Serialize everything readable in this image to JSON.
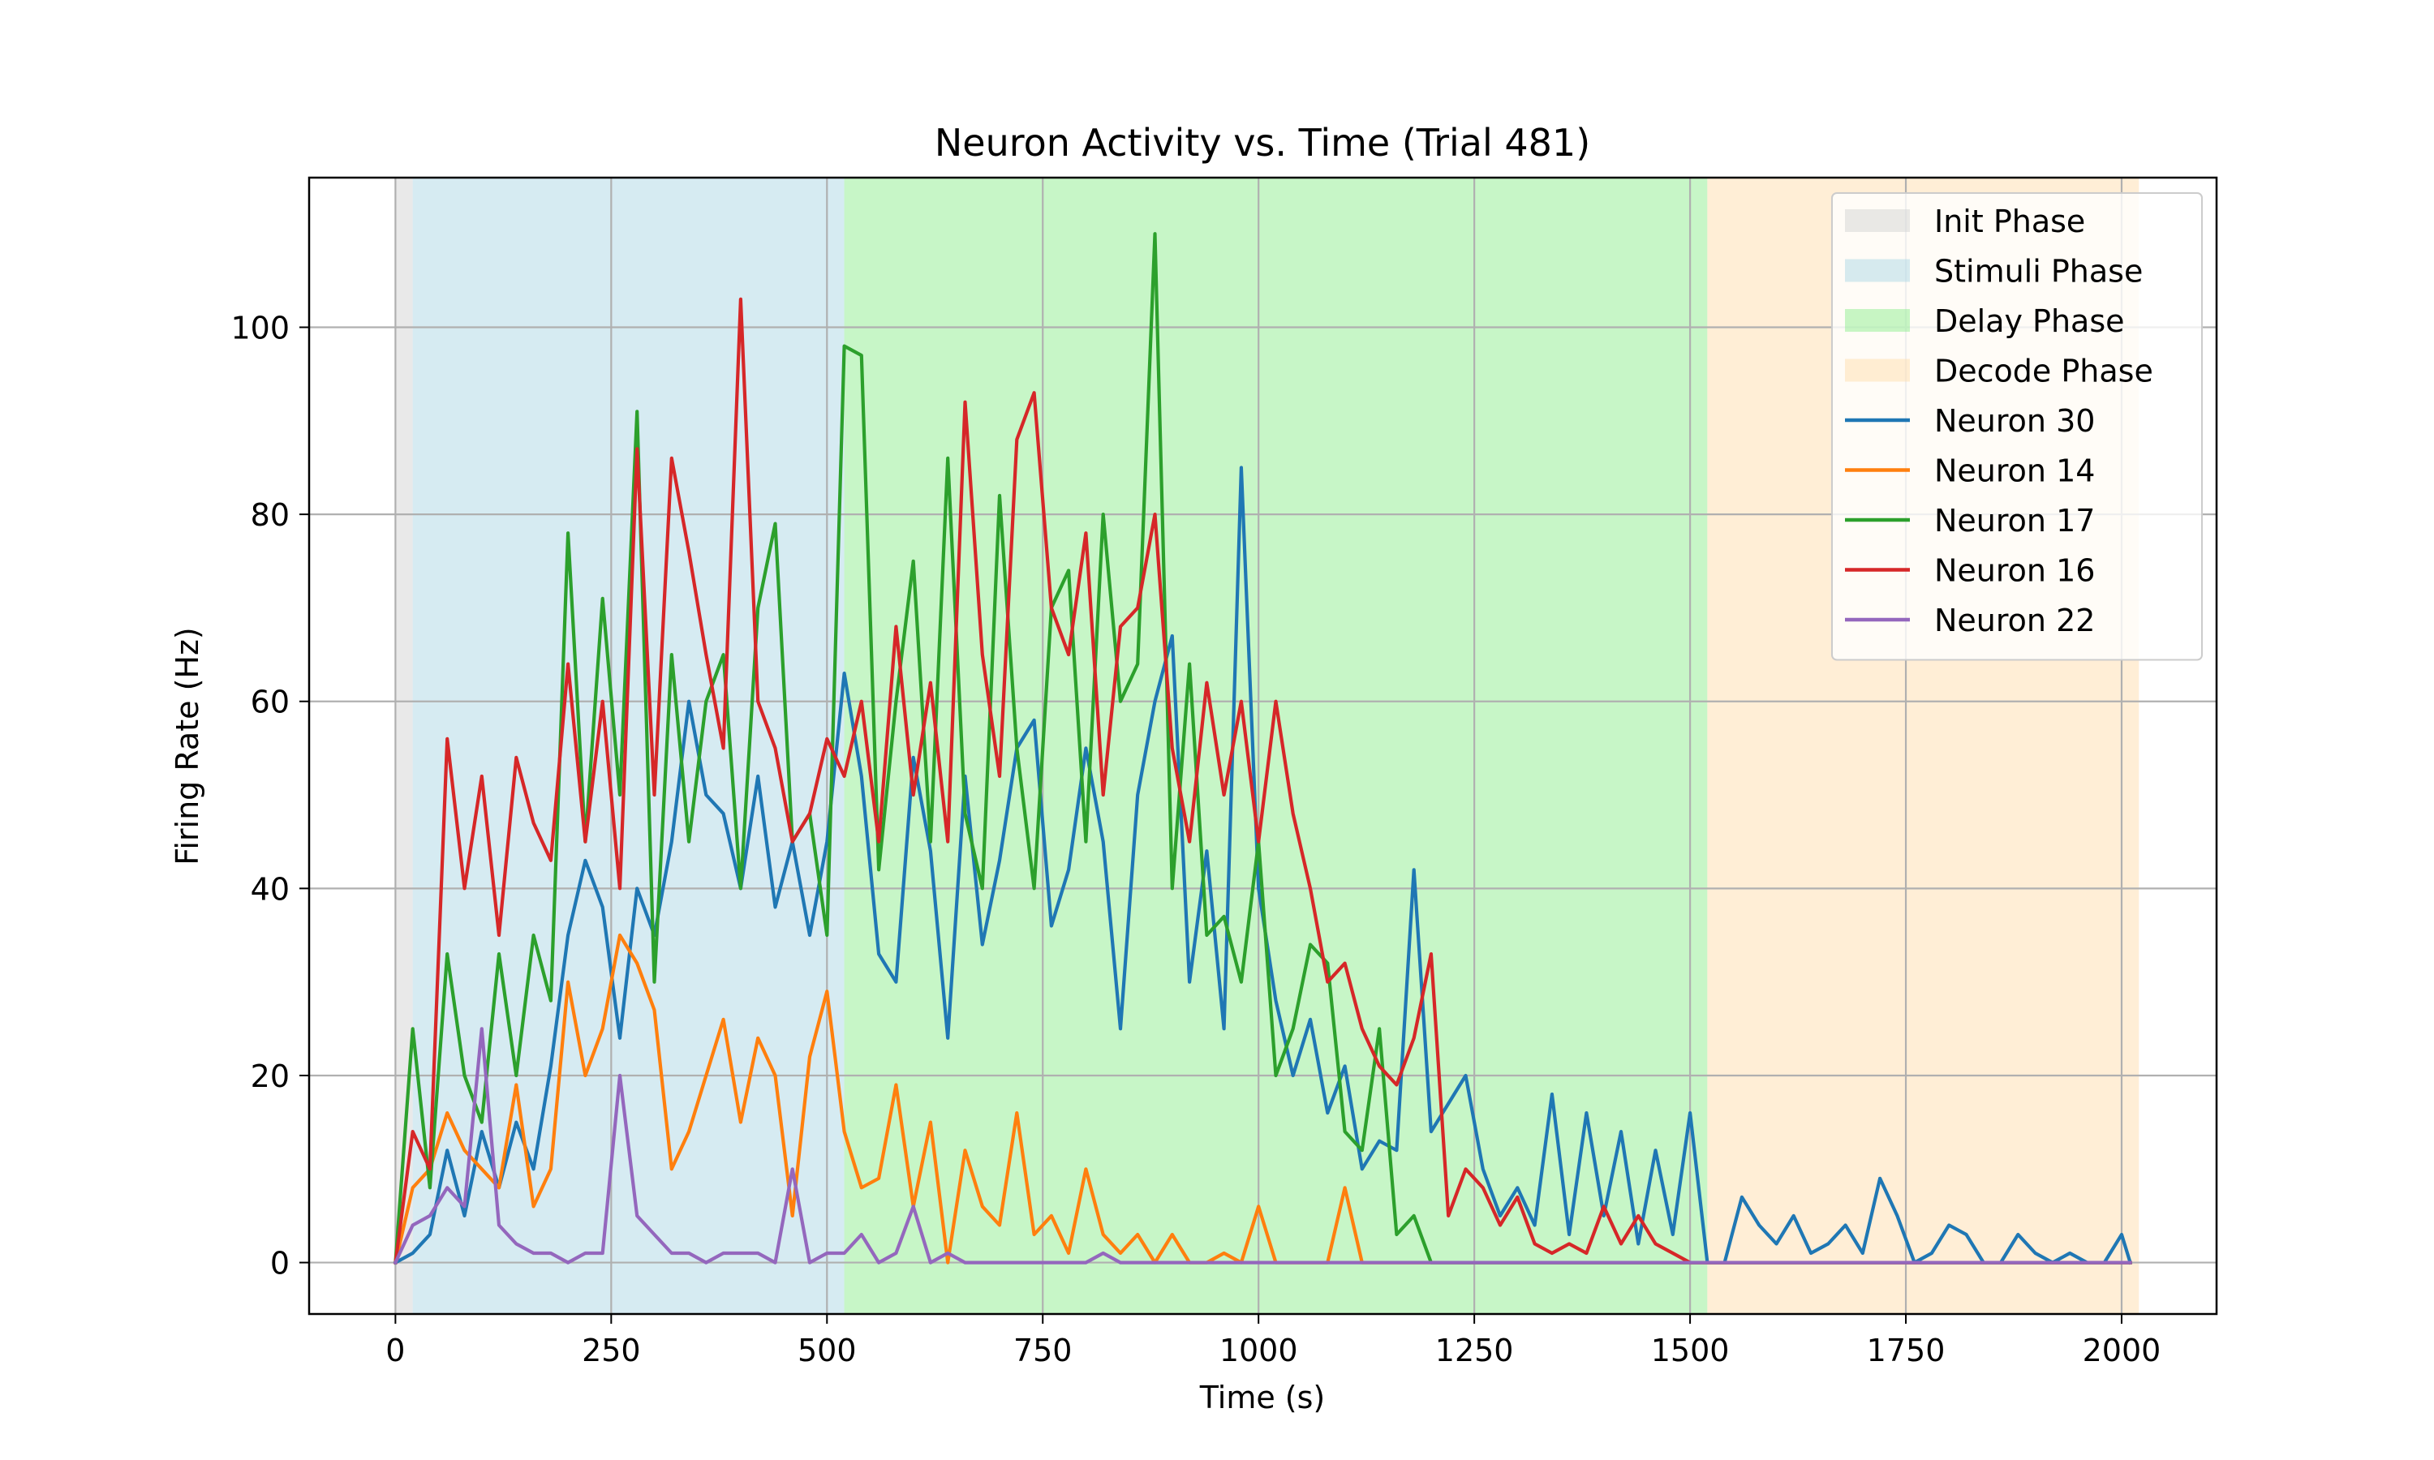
{
  "chart_data": {
    "type": "line",
    "title": "Neuron Activity vs. Time (Trial 481)",
    "xlabel": "Time (s)",
    "ylabel": "Firing Rate (Hz)",
    "xlim": [
      -100,
      2110
    ],
    "ylim": [
      -5.5,
      116
    ],
    "xticks": [
      0,
      250,
      500,
      750,
      1000,
      1250,
      1500,
      1750,
      2000
    ],
    "yticks": [
      0,
      20,
      40,
      60,
      80,
      100
    ],
    "grid": true,
    "legend_position": "top-right",
    "phases": [
      {
        "name": "Init Phase",
        "start": 0,
        "end": 20,
        "color": "#d3d3d3"
      },
      {
        "name": "Stimuli Phase",
        "start": 20,
        "end": 520,
        "color": "#add8e6"
      },
      {
        "name": "Delay Phase",
        "start": 520,
        "end": 1520,
        "color": "#90ee90"
      },
      {
        "name": "Decode Phase",
        "start": 1520,
        "end": 2020,
        "color": "#ffdead"
      }
    ],
    "series": [
      {
        "name": "Neuron 30",
        "color": "#1f77b4",
        "x": [
          0,
          20,
          40,
          60,
          80,
          100,
          120,
          140,
          160,
          180,
          200,
          220,
          240,
          260,
          280,
          300,
          320,
          340,
          360,
          380,
          400,
          420,
          440,
          460,
          480,
          500,
          520,
          540,
          560,
          580,
          600,
          620,
          640,
          660,
          680,
          700,
          720,
          740,
          760,
          780,
          800,
          820,
          840,
          860,
          880,
          900,
          920,
          940,
          960,
          980,
          1000,
          1020,
          1040,
          1060,
          1080,
          1100,
          1120,
          1140,
          1160,
          1180,
          1200,
          1220,
          1240,
          1260,
          1280,
          1300,
          1320,
          1340,
          1360,
          1380,
          1400,
          1420,
          1440,
          1460,
          1480,
          1500,
          1520,
          1540,
          1560,
          1580,
          1600,
          1620,
          1640,
          1660,
          1680,
          1700,
          1720,
          1740,
          1760,
          1780,
          1800,
          1820,
          1840,
          1860,
          1880,
          1900,
          1920,
          1940,
          1960,
          1980,
          2000,
          2010
        ],
        "values": [
          0,
          1,
          3,
          12,
          5,
          14,
          8,
          15,
          10,
          21,
          35,
          43,
          38,
          24,
          40,
          35,
          45,
          60,
          50,
          48,
          40,
          52,
          38,
          45,
          35,
          45,
          63,
          52,
          33,
          30,
          54,
          44,
          24,
          52,
          34,
          43,
          55,
          58,
          36,
          42,
          55,
          45,
          25,
          50,
          60,
          67,
          30,
          44,
          25,
          85,
          40,
          28,
          20,
          26,
          16,
          21,
          10,
          13,
          12,
          42,
          14,
          17,
          20,
          10,
          5,
          8,
          4,
          18,
          3,
          16,
          5,
          14,
          2,
          12,
          3,
          16,
          0,
          0,
          7,
          4,
          2,
          5,
          1,
          2,
          4,
          1,
          9,
          5,
          0,
          1,
          4,
          3,
          0,
          0,
          3,
          1,
          0,
          1,
          0,
          0,
          3,
          0
        ]
      },
      {
        "name": "Neuron 14",
        "color": "#ff7f0e",
        "x": [
          0,
          20,
          40,
          60,
          80,
          100,
          120,
          140,
          160,
          180,
          200,
          220,
          240,
          260,
          280,
          300,
          320,
          340,
          360,
          380,
          400,
          420,
          440,
          460,
          480,
          500,
          520,
          540,
          560,
          580,
          600,
          620,
          640,
          660,
          680,
          700,
          720,
          740,
          760,
          780,
          800,
          820,
          840,
          860,
          880,
          900,
          920,
          940,
          960,
          980,
          1000,
          1020,
          1040,
          1060,
          1080,
          1100,
          1120,
          1140,
          1160,
          1180,
          1200,
          1220,
          1240,
          1260,
          1280,
          1300,
          1320,
          1340,
          1360,
          1380,
          1400,
          1420,
          1440,
          1460,
          1480,
          1500,
          1520,
          1540,
          1560,
          1580,
          1600,
          1620,
          1640,
          1660,
          1680,
          1700,
          1720,
          1740,
          1760,
          1780,
          1800,
          1820,
          1840,
          1860,
          1880,
          1900,
          1920,
          1940,
          1960,
          1980,
          2000,
          2010
        ],
        "values": [
          0,
          8,
          10,
          16,
          12,
          10,
          8,
          19,
          6,
          10,
          30,
          20,
          25,
          35,
          32,
          27,
          10,
          14,
          20,
          26,
          15,
          24,
          20,
          5,
          22,
          29,
          14,
          8,
          9,
          19,
          6,
          15,
          0,
          12,
          6,
          4,
          16,
          3,
          5,
          1,
          10,
          3,
          1,
          3,
          0,
          3,
          0,
          0,
          1,
          0,
          6,
          0,
          0,
          0,
          0,
          8,
          0,
          0,
          0,
          0,
          0,
          0,
          0,
          0,
          0,
          0,
          0,
          0,
          0,
          0,
          0,
          0,
          0,
          0,
          0,
          0,
          0,
          0,
          0,
          0,
          0,
          0,
          0,
          0,
          0,
          0,
          0,
          0,
          0,
          0,
          0,
          0,
          0,
          0,
          0,
          0,
          0,
          0,
          0,
          0,
          0,
          0
        ]
      },
      {
        "name": "Neuron 17",
        "color": "#2ca02c",
        "x": [
          0,
          20,
          40,
          60,
          80,
          100,
          120,
          140,
          160,
          180,
          200,
          220,
          240,
          260,
          280,
          300,
          320,
          340,
          360,
          380,
          400,
          420,
          440,
          460,
          480,
          500,
          520,
          540,
          560,
          580,
          600,
          620,
          640,
          660,
          680,
          700,
          720,
          740,
          760,
          780,
          800,
          820,
          840,
          860,
          880,
          900,
          920,
          940,
          960,
          980,
          1000,
          1020,
          1040,
          1060,
          1080,
          1100,
          1120,
          1140,
          1160,
          1180,
          1200,
          1220,
          1240,
          1260,
          1280,
          1300,
          1320,
          1340,
          1360,
          1380,
          1400,
          1420,
          1440,
          1460,
          1480,
          1500,
          1520,
          1540,
          1560,
          1580,
          1600,
          1620,
          1640,
          1660,
          1680,
          1700,
          1720,
          1740,
          1760,
          1780,
          1800,
          1820,
          1840,
          1860,
          1880,
          1900,
          1920,
          1940,
          1960,
          1980,
          2000,
          2010
        ],
        "values": [
          0,
          25,
          8,
          33,
          20,
          15,
          33,
          20,
          35,
          28,
          78,
          45,
          71,
          50,
          91,
          30,
          65,
          45,
          60,
          65,
          40,
          70,
          79,
          45,
          48,
          35,
          98,
          97,
          42,
          60,
          75,
          45,
          86,
          48,
          40,
          82,
          55,
          40,
          70,
          74,
          45,
          80,
          60,
          64,
          110,
          40,
          64,
          35,
          37,
          30,
          45,
          20,
          25,
          34,
          32,
          14,
          12,
          25,
          3,
          5,
          0,
          0,
          0,
          0,
          0,
          0,
          0,
          0,
          0,
          0,
          0,
          0,
          0,
          0,
          0,
          0,
          0,
          0,
          0,
          0,
          0,
          0,
          0,
          0,
          0,
          0,
          0,
          0,
          0,
          0,
          0,
          0,
          0,
          0,
          0,
          0,
          0,
          0,
          0,
          0,
          0,
          0
        ]
      },
      {
        "name": "Neuron 16",
        "color": "#d62728",
        "x": [
          0,
          20,
          40,
          60,
          80,
          100,
          120,
          140,
          160,
          180,
          200,
          220,
          240,
          260,
          280,
          300,
          320,
          340,
          360,
          380,
          400,
          420,
          440,
          460,
          480,
          500,
          520,
          540,
          560,
          580,
          600,
          620,
          640,
          660,
          680,
          700,
          720,
          740,
          760,
          780,
          800,
          820,
          840,
          860,
          880,
          900,
          920,
          940,
          960,
          980,
          1000,
          1020,
          1040,
          1060,
          1080,
          1100,
          1120,
          1140,
          1160,
          1180,
          1200,
          1220,
          1240,
          1260,
          1280,
          1300,
          1320,
          1340,
          1360,
          1380,
          1400,
          1420,
          1440,
          1460,
          1480,
          1500,
          1520,
          1540,
          1560,
          1580,
          1600,
          1620,
          1640,
          1660,
          1680,
          1700,
          1720,
          1740,
          1760,
          1780,
          1800,
          1820,
          1840,
          1860,
          1880,
          1900,
          1920,
          1940,
          1960,
          1980,
          2000,
          2010
        ],
        "values": [
          0,
          14,
          10,
          56,
          40,
          52,
          35,
          54,
          47,
          43,
          64,
          45,
          60,
          40,
          87,
          50,
          86,
          76,
          65,
          55,
          103,
          60,
          55,
          45,
          48,
          56,
          52,
          60,
          45,
          68,
          50,
          62,
          45,
          92,
          65,
          52,
          88,
          93,
          70,
          65,
          78,
          50,
          68,
          70,
          80,
          55,
          45,
          62,
          50,
          60,
          45,
          60,
          48,
          40,
          30,
          32,
          25,
          21,
          19,
          24,
          33,
          5,
          10,
          8,
          4,
          7,
          2,
          1,
          2,
          1,
          6,
          2,
          5,
          2,
          1,
          0,
          0,
          0,
          0,
          0,
          0,
          0,
          0,
          0,
          0,
          0,
          0,
          0,
          0,
          0,
          0,
          0,
          0,
          0,
          0,
          0,
          0,
          0,
          0,
          0,
          0,
          0
        ]
      },
      {
        "name": "Neuron 22",
        "color": "#9467bd",
        "x": [
          0,
          20,
          40,
          60,
          80,
          100,
          120,
          140,
          160,
          180,
          200,
          220,
          240,
          260,
          280,
          300,
          320,
          340,
          360,
          380,
          400,
          420,
          440,
          460,
          480,
          500,
          520,
          540,
          560,
          580,
          600,
          620,
          640,
          660,
          680,
          700,
          720,
          740,
          760,
          780,
          800,
          820,
          840,
          860,
          880,
          900,
          920,
          940,
          960,
          980,
          1000,
          1020,
          1040,
          1060,
          1080,
          1100,
          1120,
          1140,
          1160,
          1180,
          1200,
          1220,
          1240,
          1260,
          1280,
          1300,
          1320,
          1340,
          1360,
          1380,
          1400,
          1420,
          1440,
          1460,
          1480,
          1500,
          1520,
          1540,
          1560,
          1580,
          1600,
          1620,
          1640,
          1660,
          1680,
          1700,
          1720,
          1740,
          1760,
          1780,
          1800,
          1820,
          1840,
          1860,
          1880,
          1900,
          1920,
          1940,
          1960,
          1980,
          2000,
          2010
        ],
        "values": [
          0,
          4,
          5,
          8,
          6,
          25,
          4,
          2,
          1,
          1,
          0,
          1,
          1,
          20,
          5,
          3,
          1,
          1,
          0,
          1,
          1,
          1,
          0,
          10,
          0,
          1,
          1,
          3,
          0,
          1,
          6,
          0,
          1,
          0,
          0,
          0,
          0,
          0,
          0,
          0,
          0,
          1,
          0,
          0,
          0,
          0,
          0,
          0,
          0,
          0,
          0,
          0,
          0,
          0,
          0,
          0,
          0,
          0,
          0,
          0,
          0,
          0,
          0,
          0,
          0,
          0,
          0,
          0,
          0,
          0,
          0,
          0,
          0,
          0,
          0,
          0,
          0,
          0,
          0,
          0,
          0,
          0,
          0,
          0,
          0,
          0,
          0,
          0,
          0,
          0,
          0,
          0,
          0,
          0,
          0,
          0,
          0,
          0,
          0,
          0,
          0,
          0
        ]
      }
    ]
  }
}
